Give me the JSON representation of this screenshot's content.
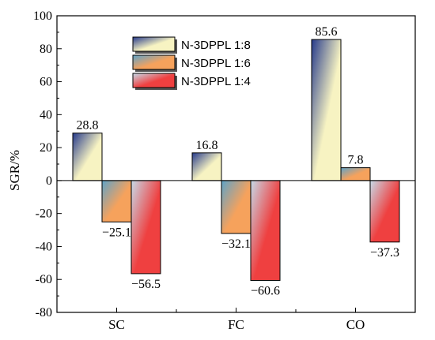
{
  "chart_data": {
    "type": "bar",
    "categories": [
      "SC",
      "FC",
      "CO"
    ],
    "series": [
      {
        "name": "N-3DPPL 1:8",
        "values": [
          28.8,
          16.8,
          85.6
        ],
        "labels": [
          "28.8",
          "16.8",
          "85.6"
        ],
        "colors": {
          "main": "#f7f3c2",
          "accent": "#263a8c"
        }
      },
      {
        "name": "N-3DPPL 1:6",
        "values": [
          -25.1,
          -32.1,
          7.8
        ],
        "labels": [
          "−25.1",
          "−32.1",
          "7.8"
        ],
        "colors": {
          "main": "#f6a25c",
          "accent": "#5ea3c9"
        }
      },
      {
        "name": "N-3DPPL 1:4",
        "values": [
          -56.5,
          -60.6,
          -37.3
        ],
        "labels": [
          "−56.5",
          "−60.6",
          "−37.3"
        ],
        "colors": {
          "main": "#ef4040",
          "accent": "#c6dbe9"
        }
      }
    ],
    "ylabel": "SGR/%",
    "xlabel": "",
    "ylim": [
      -80,
      100
    ],
    "yticks": [
      -80,
      -60,
      -40,
      -20,
      0,
      20,
      40,
      60,
      80,
      100
    ],
    "legend_position": "top-center",
    "grid": false
  }
}
